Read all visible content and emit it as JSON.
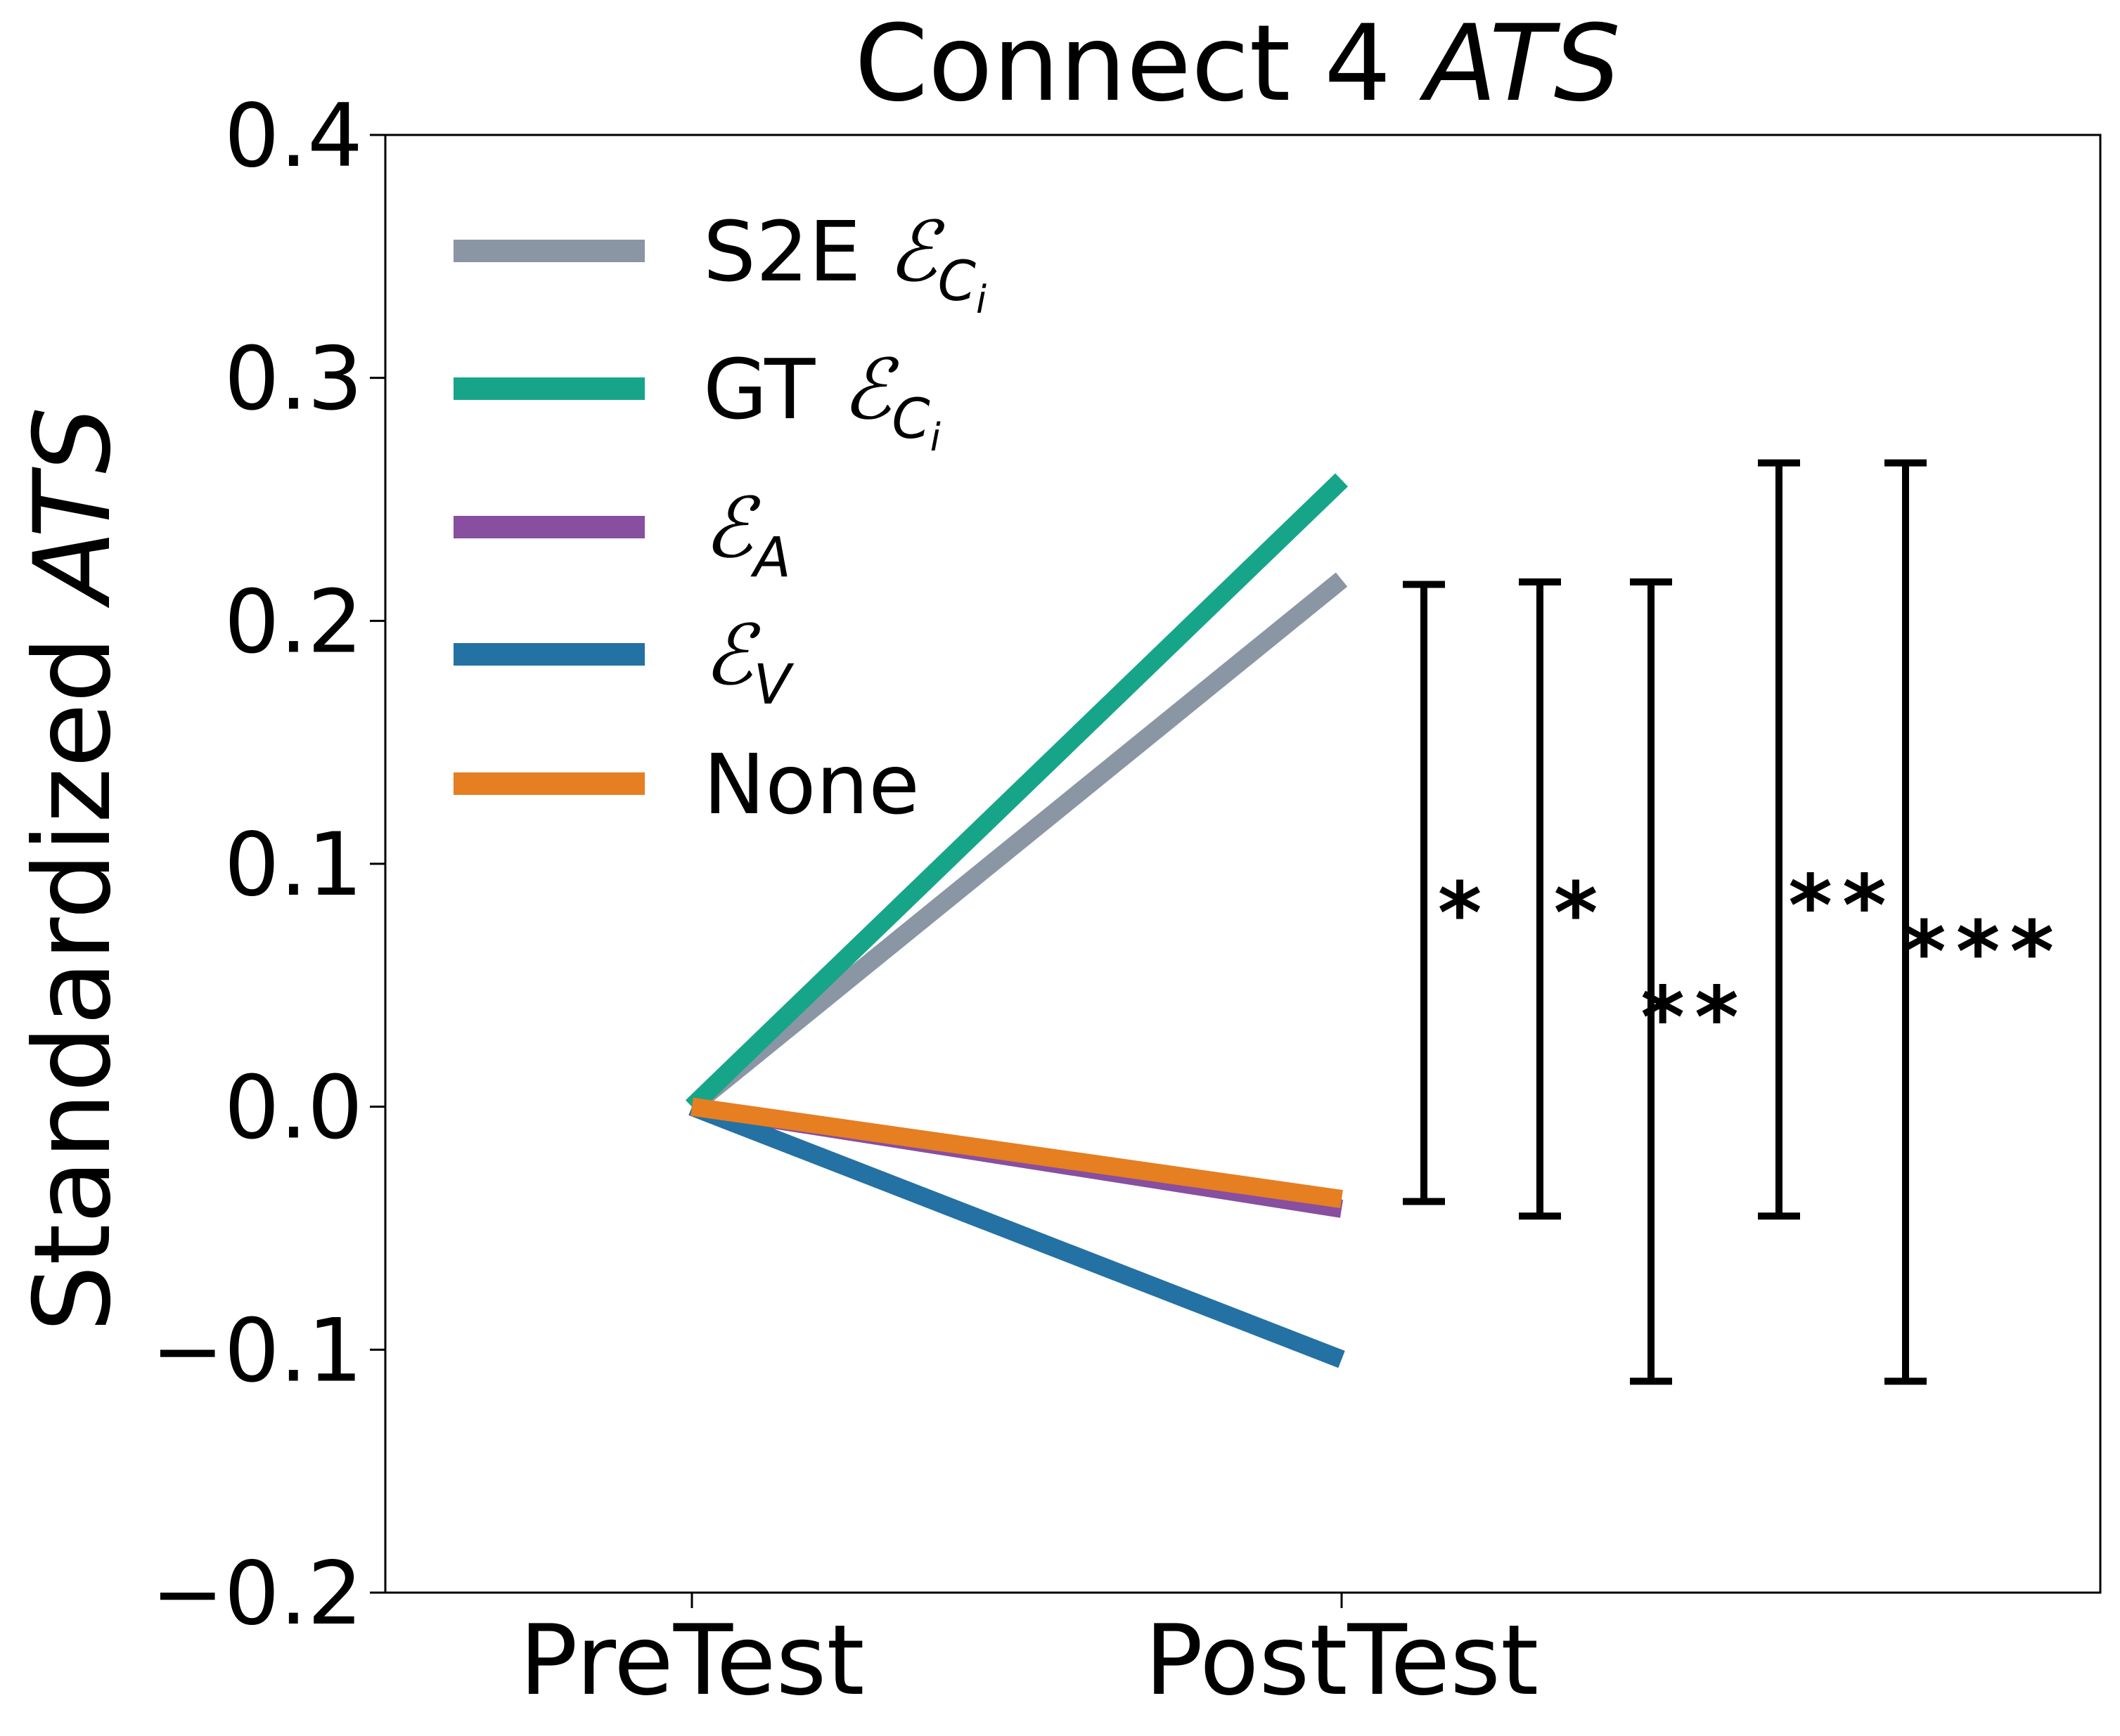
{
  "chart_data": {
    "type": "line",
    "title": {
      "main": "Connect 4",
      "italic": "ATS"
    },
    "ylabel": {
      "main": "Standardized",
      "italic": "ATS"
    },
    "xlabel": "",
    "categories": [
      "PreTest",
      "PostTest"
    ],
    "ylim": [
      -0.2,
      0.4
    ],
    "yticks": [
      -0.2,
      -0.1,
      0.0,
      0.1,
      0.2,
      0.3,
      0.4
    ],
    "ytick_labels": [
      "−0.2",
      "−0.1",
      "0.0",
      "0.1",
      "0.2",
      "0.3",
      "0.4"
    ],
    "grid": false,
    "legend_position": "top-left",
    "series": [
      {
        "id": "s2e",
        "name": "S2E",
        "symbol": "ℰ",
        "subscript": "C",
        "subsub": "i",
        "color": "#8a96a4",
        "values": [
          0.0,
          0.217
        ]
      },
      {
        "id": "gt",
        "name": "GT",
        "symbol": "ℰ",
        "subscript": "C",
        "subsub": "i",
        "color": "#17a589",
        "values": [
          0.0,
          0.258
        ]
      },
      {
        "id": "ea",
        "name": "",
        "symbol": "ℰ",
        "subscript": "A",
        "subsub": "",
        "color": "#884ea0",
        "values": [
          0.0,
          -0.042
        ]
      },
      {
        "id": "ev",
        "name": "",
        "symbol": "ℰ",
        "subscript": "V",
        "subsub": "",
        "color": "#2471a3",
        "values": [
          0.0,
          -0.104
        ]
      },
      {
        "id": "none",
        "name": "None",
        "symbol": "",
        "subscript": "",
        "subsub": "",
        "color": "#e67e22",
        "values": [
          0.0,
          -0.038
        ]
      }
    ],
    "significance_brackets": [
      {
        "low": -0.039,
        "high": 0.215,
        "label": "*"
      },
      {
        "low": -0.045,
        "high": 0.216,
        "label": "*"
      },
      {
        "low": -0.113,
        "high": 0.216,
        "label": "**"
      },
      {
        "low": -0.045,
        "high": 0.265,
        "label": "**"
      },
      {
        "low": -0.113,
        "high": 0.265,
        "label": "***"
      }
    ]
  }
}
